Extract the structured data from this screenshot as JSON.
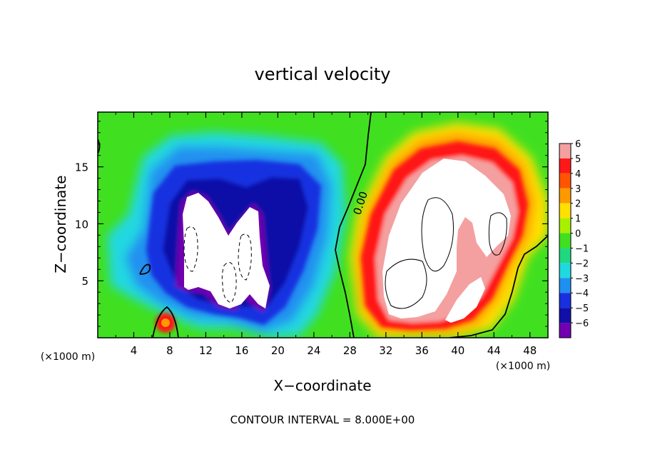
{
  "chart_data": {
    "type": "heatmap",
    "title": "vertical velocity",
    "xlabel": "X−coordinate",
    "ylabel": "Z−coordinate",
    "x_unit": "(×1000 m)",
    "x_unit_right": "(×1000 m)",
    "footer": "CONTOUR INTERVAL = 8.000E+00",
    "xlim": [
      0,
      50
    ],
    "ylim": [
      0,
      19.8
    ],
    "xticks": [
      4,
      8,
      12,
      16,
      20,
      24,
      28,
      32,
      36,
      40,
      44,
      48
    ],
    "yticks": [
      5,
      10,
      15
    ],
    "colorbar": {
      "levels": [
        6,
        5,
        4,
        3,
        2,
        1,
        0,
        -1,
        -2,
        -3,
        -4,
        -5,
        -6
      ],
      "level_labels": [
        "6",
        "5",
        "4",
        "3",
        "2",
        "1",
        "0",
        "−1",
        "−2",
        "−3",
        "−4",
        "−5",
        "−6"
      ],
      "colors": [
        "#f4a0a0",
        "#ff1818",
        "#ff5500",
        "#ff9900",
        "#ffe000",
        "#a8f000",
        "#40e020",
        "#20d880",
        "#20d8e0",
        "#2090f0",
        "#1830e0",
        "#1010a8",
        "#7000b0"
      ],
      "over_color": "#ffffff",
      "under_color": "#ffffff"
    },
    "contour_labels": [
      "0.00"
    ],
    "features": [
      {
        "kind": "downdraft_core",
        "x_range": [
          9,
          21
        ],
        "z_range": [
          2.5,
          12.5
        ],
        "min_value": -6
      },
      {
        "kind": "updraft_core",
        "x_range": [
          31,
          47
        ],
        "z_range": [
          1.5,
          16
        ],
        "max_value": 6
      }
    ]
  }
}
